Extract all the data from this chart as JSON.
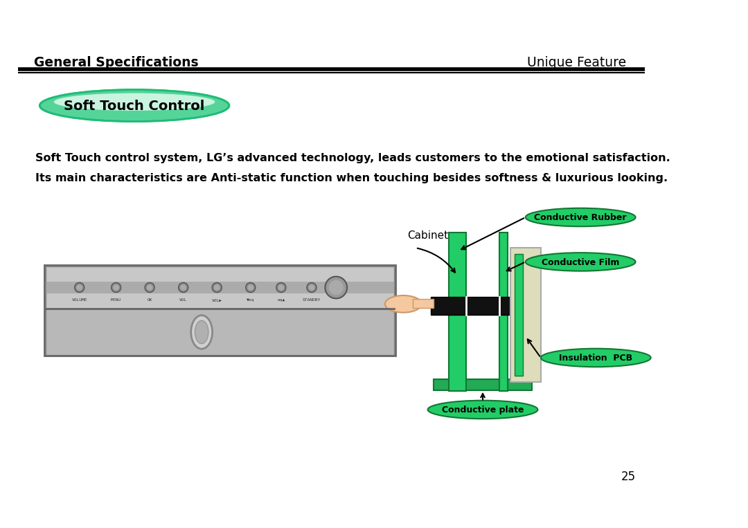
{
  "title_left": "General Specifications",
  "title_right": "Unique Feature",
  "section_title": "Soft Touch Control",
  "body_line1": "Soft Touch control system, LG’s advanced technology, leads customers to the emotional satisfaction.",
  "body_line2": "Its main characteristics are Anti-static function when touching besides softness & luxurious looking.",
  "page_number": "25",
  "bg_color": "#ffffff",
  "header_bar_color": "#1a1a1a",
  "ellipse_fill_top": "#3ecf8e",
  "ellipse_fill_bottom": "#c8f0dc",
  "ellipse_border": "#2dbf7e",
  "label_conductive_rubber": "Conductive Rubber",
  "label_conductive_film": "Conductive Film",
  "label_insulation_pcb": "Insulation  PCB",
  "label_conductive_plate": "Conductive plate",
  "label_cabinet": "Cabinet"
}
